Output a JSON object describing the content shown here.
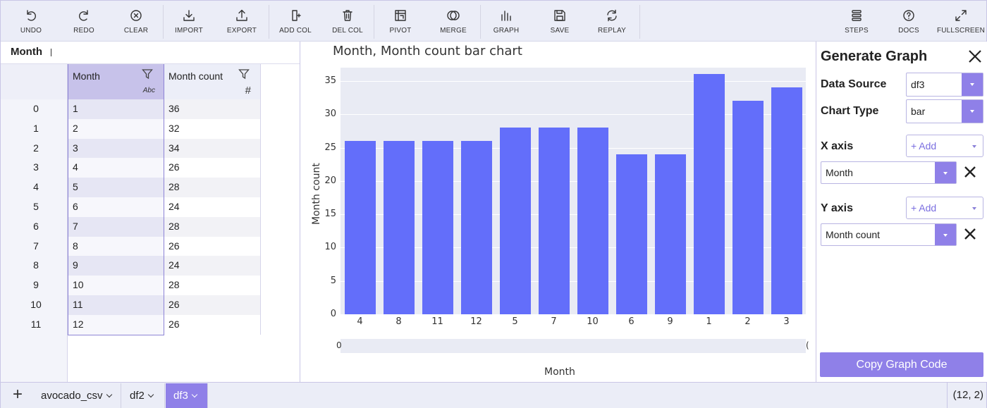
{
  "toolbar": {
    "undo": "UNDO",
    "redo": "REDO",
    "clear": "CLEAR",
    "import": "IMPORT",
    "export": "EXPORT",
    "add_col": "ADD COL",
    "del_col": "DEL COL",
    "pivot": "PIVOT",
    "merge": "MERGE",
    "graph": "GRAPH",
    "save": "SAVE",
    "replay": "REPLAY",
    "steps": "STEPS",
    "docs": "DOCS",
    "fullscreen": "FULLSCREEN"
  },
  "selection": {
    "label": "Month"
  },
  "grid": {
    "columns": [
      {
        "name": "Month",
        "type": "Abc"
      },
      {
        "name": "Month count",
        "type": "#"
      }
    ],
    "index": [
      "0",
      "1",
      "2",
      "3",
      "4",
      "5",
      "6",
      "7",
      "8",
      "9",
      "10",
      "11"
    ],
    "rows": [
      [
        "1",
        "36"
      ],
      [
        "2",
        "32"
      ],
      [
        "3",
        "34"
      ],
      [
        "4",
        "26"
      ],
      [
        "5",
        "28"
      ],
      [
        "6",
        "24"
      ],
      [
        "7",
        "28"
      ],
      [
        "8",
        "26"
      ],
      [
        "9",
        "24"
      ],
      [
        "10",
        "28"
      ],
      [
        "11",
        "26"
      ],
      [
        "12",
        "26"
      ]
    ]
  },
  "chart_data": {
    "type": "bar",
    "title": "Month, Month count bar chart",
    "xlabel": "Month",
    "ylabel": "Month count",
    "categories": [
      "4",
      "8",
      "11",
      "12",
      "5",
      "7",
      "10",
      "6",
      "9",
      "1",
      "2",
      "3"
    ],
    "values": [
      26,
      26,
      26,
      26,
      28,
      28,
      28,
      24,
      24,
      36,
      32,
      34
    ],
    "ylim": [
      0,
      37
    ],
    "yticks": [
      0,
      5,
      10,
      15,
      20,
      25,
      30,
      35
    ],
    "grid": true,
    "color": "#636efa",
    "range_slider": {
      "label_left": "0",
      "label_right": "("
    }
  },
  "graph_panel": {
    "title": "Generate Graph",
    "data_source_label": "Data Source",
    "data_source_value": "df3",
    "chart_type_label": "Chart Type",
    "chart_type_value": "bar",
    "x_axis_label": "X axis",
    "x_axis_add": "+ Add",
    "x_axis_value": "Month",
    "y_axis_label": "Y axis",
    "y_axis_add": "+ Add",
    "y_axis_value": "Month count",
    "copy_button": "Copy Graph Code",
    "accent": "#8f80e8"
  },
  "bottom": {
    "add_tab": "+",
    "tabs": [
      "avocado_csv",
      "df2",
      "df3"
    ],
    "active_tab": "df3",
    "coords": "(12, 2)"
  }
}
